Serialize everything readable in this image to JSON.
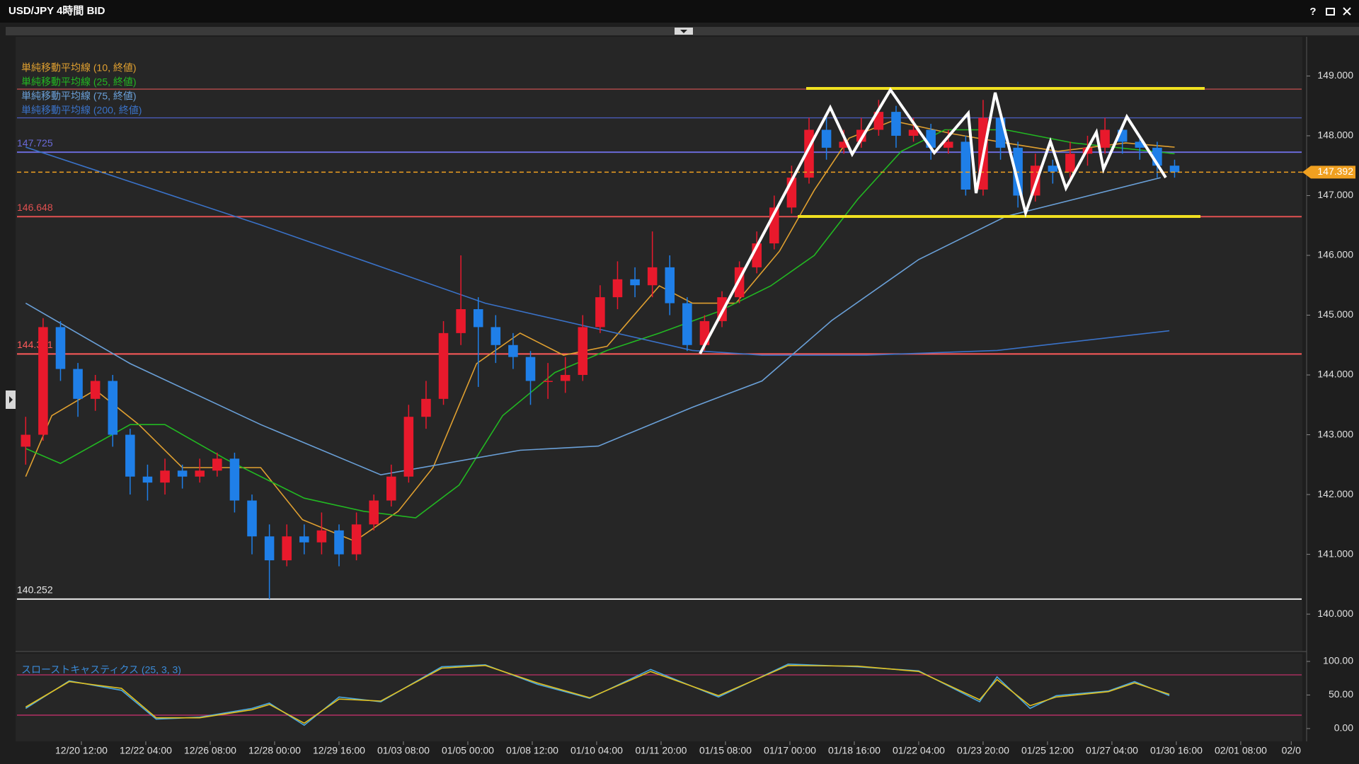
{
  "window": {
    "title": "USD/JPY 4時間 BID",
    "help": "?"
  },
  "chart_data": [
    {
      "type": "candlestick",
      "up_color": "#e8192c",
      "down_color": "#1f7fe8",
      "open": [
        142.8,
        143.0,
        144.8,
        144.1,
        143.6,
        143.9,
        143.0,
        142.3,
        142.2,
        142.4,
        142.3,
        142.4,
        142.6,
        141.9,
        141.3,
        140.9,
        141.3,
        141.2,
        141.4,
        141.0,
        141.5,
        141.9,
        142.3,
        143.3,
        143.6,
        144.7,
        145.1,
        144.8,
        144.5,
        144.3,
        143.9,
        143.9,
        144.0,
        144.8,
        145.3,
        145.6,
        145.5,
        145.8,
        145.2,
        144.5,
        144.9,
        145.3,
        145.8,
        146.2,
        146.8,
        147.3,
        148.1,
        147.8,
        147.9,
        148.1,
        148.4,
        148.0,
        148.1,
        147.8,
        147.9,
        147.1,
        148.3,
        147.8,
        147.0,
        147.5,
        147.4,
        147.7,
        147.8,
        148.1,
        147.9,
        147.8,
        147.5
      ],
      "high": [
        143.3,
        144.95,
        144.9,
        144.2,
        144.0,
        144.0,
        143.1,
        142.5,
        142.6,
        142.5,
        142.6,
        142.7,
        142.7,
        142.0,
        141.5,
        141.5,
        141.5,
        141.7,
        141.5,
        141.7,
        142.0,
        142.5,
        143.5,
        143.9,
        144.9,
        146.0,
        145.3,
        145.0,
        144.7,
        144.4,
        144.2,
        144.3,
        145.0,
        145.5,
        145.9,
        145.8,
        146.4,
        146.0,
        145.3,
        145.0,
        145.4,
        145.9,
        146.4,
        147.0,
        147.5,
        148.3,
        148.3,
        148.1,
        148.3,
        148.6,
        148.5,
        148.3,
        148.2,
        148.1,
        148.0,
        148.6,
        148.4,
        147.9,
        147.7,
        147.6,
        147.9,
        148.0,
        148.3,
        148.2,
        148.0,
        147.9,
        147.6
      ],
      "low": [
        142.5,
        142.9,
        143.9,
        143.3,
        143.4,
        142.8,
        142.0,
        141.9,
        142.0,
        142.1,
        142.2,
        142.3,
        141.7,
        141.0,
        140.25,
        140.8,
        141.0,
        141.0,
        140.8,
        140.9,
        141.4,
        141.8,
        142.2,
        143.1,
        143.5,
        144.5,
        143.8,
        144.2,
        144.1,
        143.5,
        143.6,
        143.7,
        143.9,
        144.7,
        145.1,
        145.3,
        145.3,
        145.0,
        144.4,
        144.4,
        144.8,
        145.2,
        145.7,
        146.1,
        146.7,
        147.2,
        147.6,
        147.7,
        147.8,
        148.0,
        147.8,
        147.9,
        147.6,
        147.7,
        147.0,
        147.0,
        147.6,
        146.8,
        146.9,
        147.2,
        147.3,
        147.5,
        147.7,
        147.7,
        147.6,
        147.3,
        147.3
      ],
      "close": [
        143.0,
        144.8,
        144.1,
        143.6,
        143.9,
        143.0,
        142.3,
        142.2,
        142.4,
        142.3,
        142.4,
        142.6,
        141.9,
        141.3,
        140.9,
        141.3,
        141.2,
        141.4,
        141.0,
        141.5,
        141.9,
        142.3,
        143.3,
        143.6,
        144.7,
        145.1,
        144.8,
        144.5,
        144.3,
        143.9,
        143.9,
        144.0,
        144.8,
        145.3,
        145.6,
        145.5,
        145.8,
        145.2,
        144.5,
        144.9,
        145.3,
        145.8,
        146.2,
        146.8,
        147.3,
        148.1,
        147.8,
        147.9,
        148.1,
        148.4,
        148.0,
        148.1,
        147.8,
        147.9,
        147.1,
        148.3,
        147.8,
        147.0,
        147.5,
        147.4,
        147.7,
        147.8,
        148.1,
        147.9,
        147.8,
        147.5,
        147.39
      ],
      "series": [
        {
          "name": "単純移動平均線 (10, 終値)",
          "color": "#e0a030",
          "x": [
            0,
            1.5,
            4.0,
            6.5,
            9.0,
            13.5,
            15.9,
            18.9,
            21.4,
            23.4,
            25.9,
            28.4,
            30.9,
            33.4,
            36.4,
            38.3,
            40.8,
            43.3,
            45.3,
            47.3,
            49.8,
            53.3,
            56.3,
            59.3,
            63.2,
            66
          ],
          "values": [
            142.3,
            143.32,
            143.75,
            143.17,
            142.45,
            142.45,
            141.58,
            141.22,
            141.72,
            142.45,
            144.19,
            144.7,
            144.33,
            144.48,
            145.49,
            145.2,
            145.2,
            146.07,
            147.09,
            147.96,
            148.25,
            148.03,
            147.88,
            147.74,
            147.88,
            147.81
          ]
        },
        {
          "name": "単純移動平均線 (25, 終値)",
          "color": "#22b822",
          "x": [
            0,
            2.0,
            6.0,
            8.0,
            11.5,
            16,
            19.4,
            22.4,
            24.9,
            27.4,
            30.4,
            33.4,
            36.4,
            39.8,
            42.8,
            45.3,
            47.8,
            50.3,
            52.8,
            56.3,
            60.2,
            66
          ],
          "values": [
            142.77,
            142.52,
            143.17,
            143.17,
            142.59,
            141.94,
            141.72,
            141.61,
            142.16,
            143.32,
            144.04,
            144.41,
            144.7,
            145.06,
            145.49,
            146.0,
            146.94,
            147.74,
            148.1,
            148.1,
            147.88,
            147.7
          ]
        },
        {
          "name": "単純移動平均線 (75, 終値)",
          "color": "#6aa0d8",
          "x": [
            0,
            6,
            13.5,
            20.4,
            28.4,
            32.9,
            38.3,
            42.3,
            46.3,
            51.3,
            56.3,
            65.2
          ],
          "values": [
            145.2,
            144.19,
            143.17,
            142.33,
            142.74,
            142.81,
            143.46,
            143.9,
            144.91,
            145.93,
            146.65,
            147.3
          ]
        },
        {
          "name": "単純移動平均線 (200, 終値)",
          "color": "#3a72c8",
          "x": [
            0,
            13.5,
            26.4,
            38.3,
            42.3,
            48.3,
            55.8,
            65.7
          ],
          "values": [
            147.81,
            146.51,
            145.2,
            144.41,
            144.33,
            144.33,
            144.41,
            144.74
          ]
        }
      ],
      "levels": [
        {
          "value": 148.78,
          "color": "#c85050"
        },
        {
          "value": 148.3,
          "color": "#4a5ab8"
        },
        {
          "value": 147.725,
          "color": "#6a6ad8",
          "labeled": true
        },
        {
          "value": 146.648,
          "color": "#e05050",
          "labeled": true
        },
        {
          "value": 144.351,
          "color": "#ff5a5a",
          "labeled": true
        },
        {
          "value": 140.252,
          "color": "#e8e8e8",
          "labeled": true
        }
      ],
      "last_price": {
        "value": 147.392,
        "color": "#f0a020"
      },
      "xlim": [
        -0.5,
        73.3
      ],
      "ylim": [
        139.41,
        149.62
      ],
      "yticks": [
        {
          "value": 140,
          "label": "140.000"
        },
        {
          "value": 141,
          "label": "141.000"
        },
        {
          "value": 142,
          "label": "142.000"
        },
        {
          "value": 143,
          "label": "143.000"
        },
        {
          "value": 144,
          "label": "144.000"
        },
        {
          "value": 145,
          "label": "145.000"
        },
        {
          "value": 146,
          "label": "146.000"
        },
        {
          "value": 147,
          "label": "147.000"
        },
        {
          "value": 148,
          "label": "148.000"
        },
        {
          "value": 149,
          "label": "149.000"
        }
      ],
      "xticks": [
        {
          "value": 3.2,
          "label": "12/20 12:00"
        },
        {
          "value": 6.9,
          "label": "12/22 04:00"
        },
        {
          "value": 10.6,
          "label": "12/26 08:00"
        },
        {
          "value": 14.3,
          "label": "12/28 00:00"
        },
        {
          "value": 18.0,
          "label": "12/29 16:00"
        },
        {
          "value": 21.7,
          "label": "01/03 08:00"
        },
        {
          "value": 25.4,
          "label": "01/05 00:00"
        },
        {
          "value": 29.1,
          "label": "01/08 12:00"
        },
        {
          "value": 32.8,
          "label": "01/10 04:00"
        },
        {
          "value": 36.5,
          "label": "01/11 20:00"
        },
        {
          "value": 40.2,
          "label": "01/15 08:00"
        },
        {
          "value": 43.9,
          "label": "01/17 00:00"
        },
        {
          "value": 47.6,
          "label": "01/18 16:00"
        },
        {
          "value": 51.3,
          "label": "01/22 04:00"
        },
        {
          "value": 55.0,
          "label": "01/23 20:00"
        },
        {
          "value": 58.7,
          "label": "01/25 12:00"
        },
        {
          "value": 62.4,
          "label": "01/27 04:00"
        },
        {
          "value": 66.1,
          "label": "01/30 16:00"
        },
        {
          "value": 69.8,
          "label": "02/01 08:00"
        },
        {
          "value": 72.7,
          "label": "02/0"
        }
      ],
      "grid": false
    },
    {
      "type": "line",
      "label": "スローストキャスティクス (25, 3, 3)",
      "label_color": "#3a8ad8",
      "series": [
        {
          "color": "#4aa8e0",
          "x": [
            0,
            2.5,
            5.5,
            7.5,
            10,
            13,
            14,
            16,
            18,
            20.4,
            23.9,
            26.4,
            29.4,
            32.4,
            35.9,
            39.8,
            43.8,
            47.8,
            51.3,
            54.8,
            55.8,
            57.7,
            59.2,
            62.2,
            63.7,
            65.7
          ],
          "values": [
            30,
            71,
            57,
            14,
            17,
            30,
            38,
            5,
            47,
            40,
            92,
            95,
            66,
            45,
            88,
            47,
            96,
            92,
            86,
            40,
            77,
            30,
            49,
            56,
            70,
            49
          ]
        },
        {
          "color": "#e0c020",
          "x": [
            0,
            2.5,
            5.5,
            7.5,
            10,
            13,
            14,
            16,
            18,
            20.4,
            23.9,
            26.4,
            29.4,
            32.4,
            35.9,
            39.8,
            43.8,
            47.8,
            51.3,
            54.8,
            55.8,
            57.7,
            59.2,
            62.2,
            63.7,
            65.7
          ],
          "values": [
            32,
            70,
            60,
            16,
            16,
            28,
            36,
            8,
            44,
            41,
            90,
            94,
            68,
            46,
            85,
            49,
            94,
            93,
            85,
            43,
            73,
            34,
            47,
            55,
            68,
            51
          ]
        }
      ],
      "levels": [
        {
          "value": 80,
          "color": "#c0306a"
        },
        {
          "value": 20,
          "color": "#c0306a"
        }
      ],
      "xlim": [
        -0.5,
        73.3
      ],
      "ylim": [
        -18,
        111.6
      ],
      "yticks": [
        {
          "value": 0,
          "label": "0.00"
        },
        {
          "value": 50,
          "label": "50.00"
        },
        {
          "value": 100,
          "label": "100.00"
        }
      ]
    }
  ]
}
